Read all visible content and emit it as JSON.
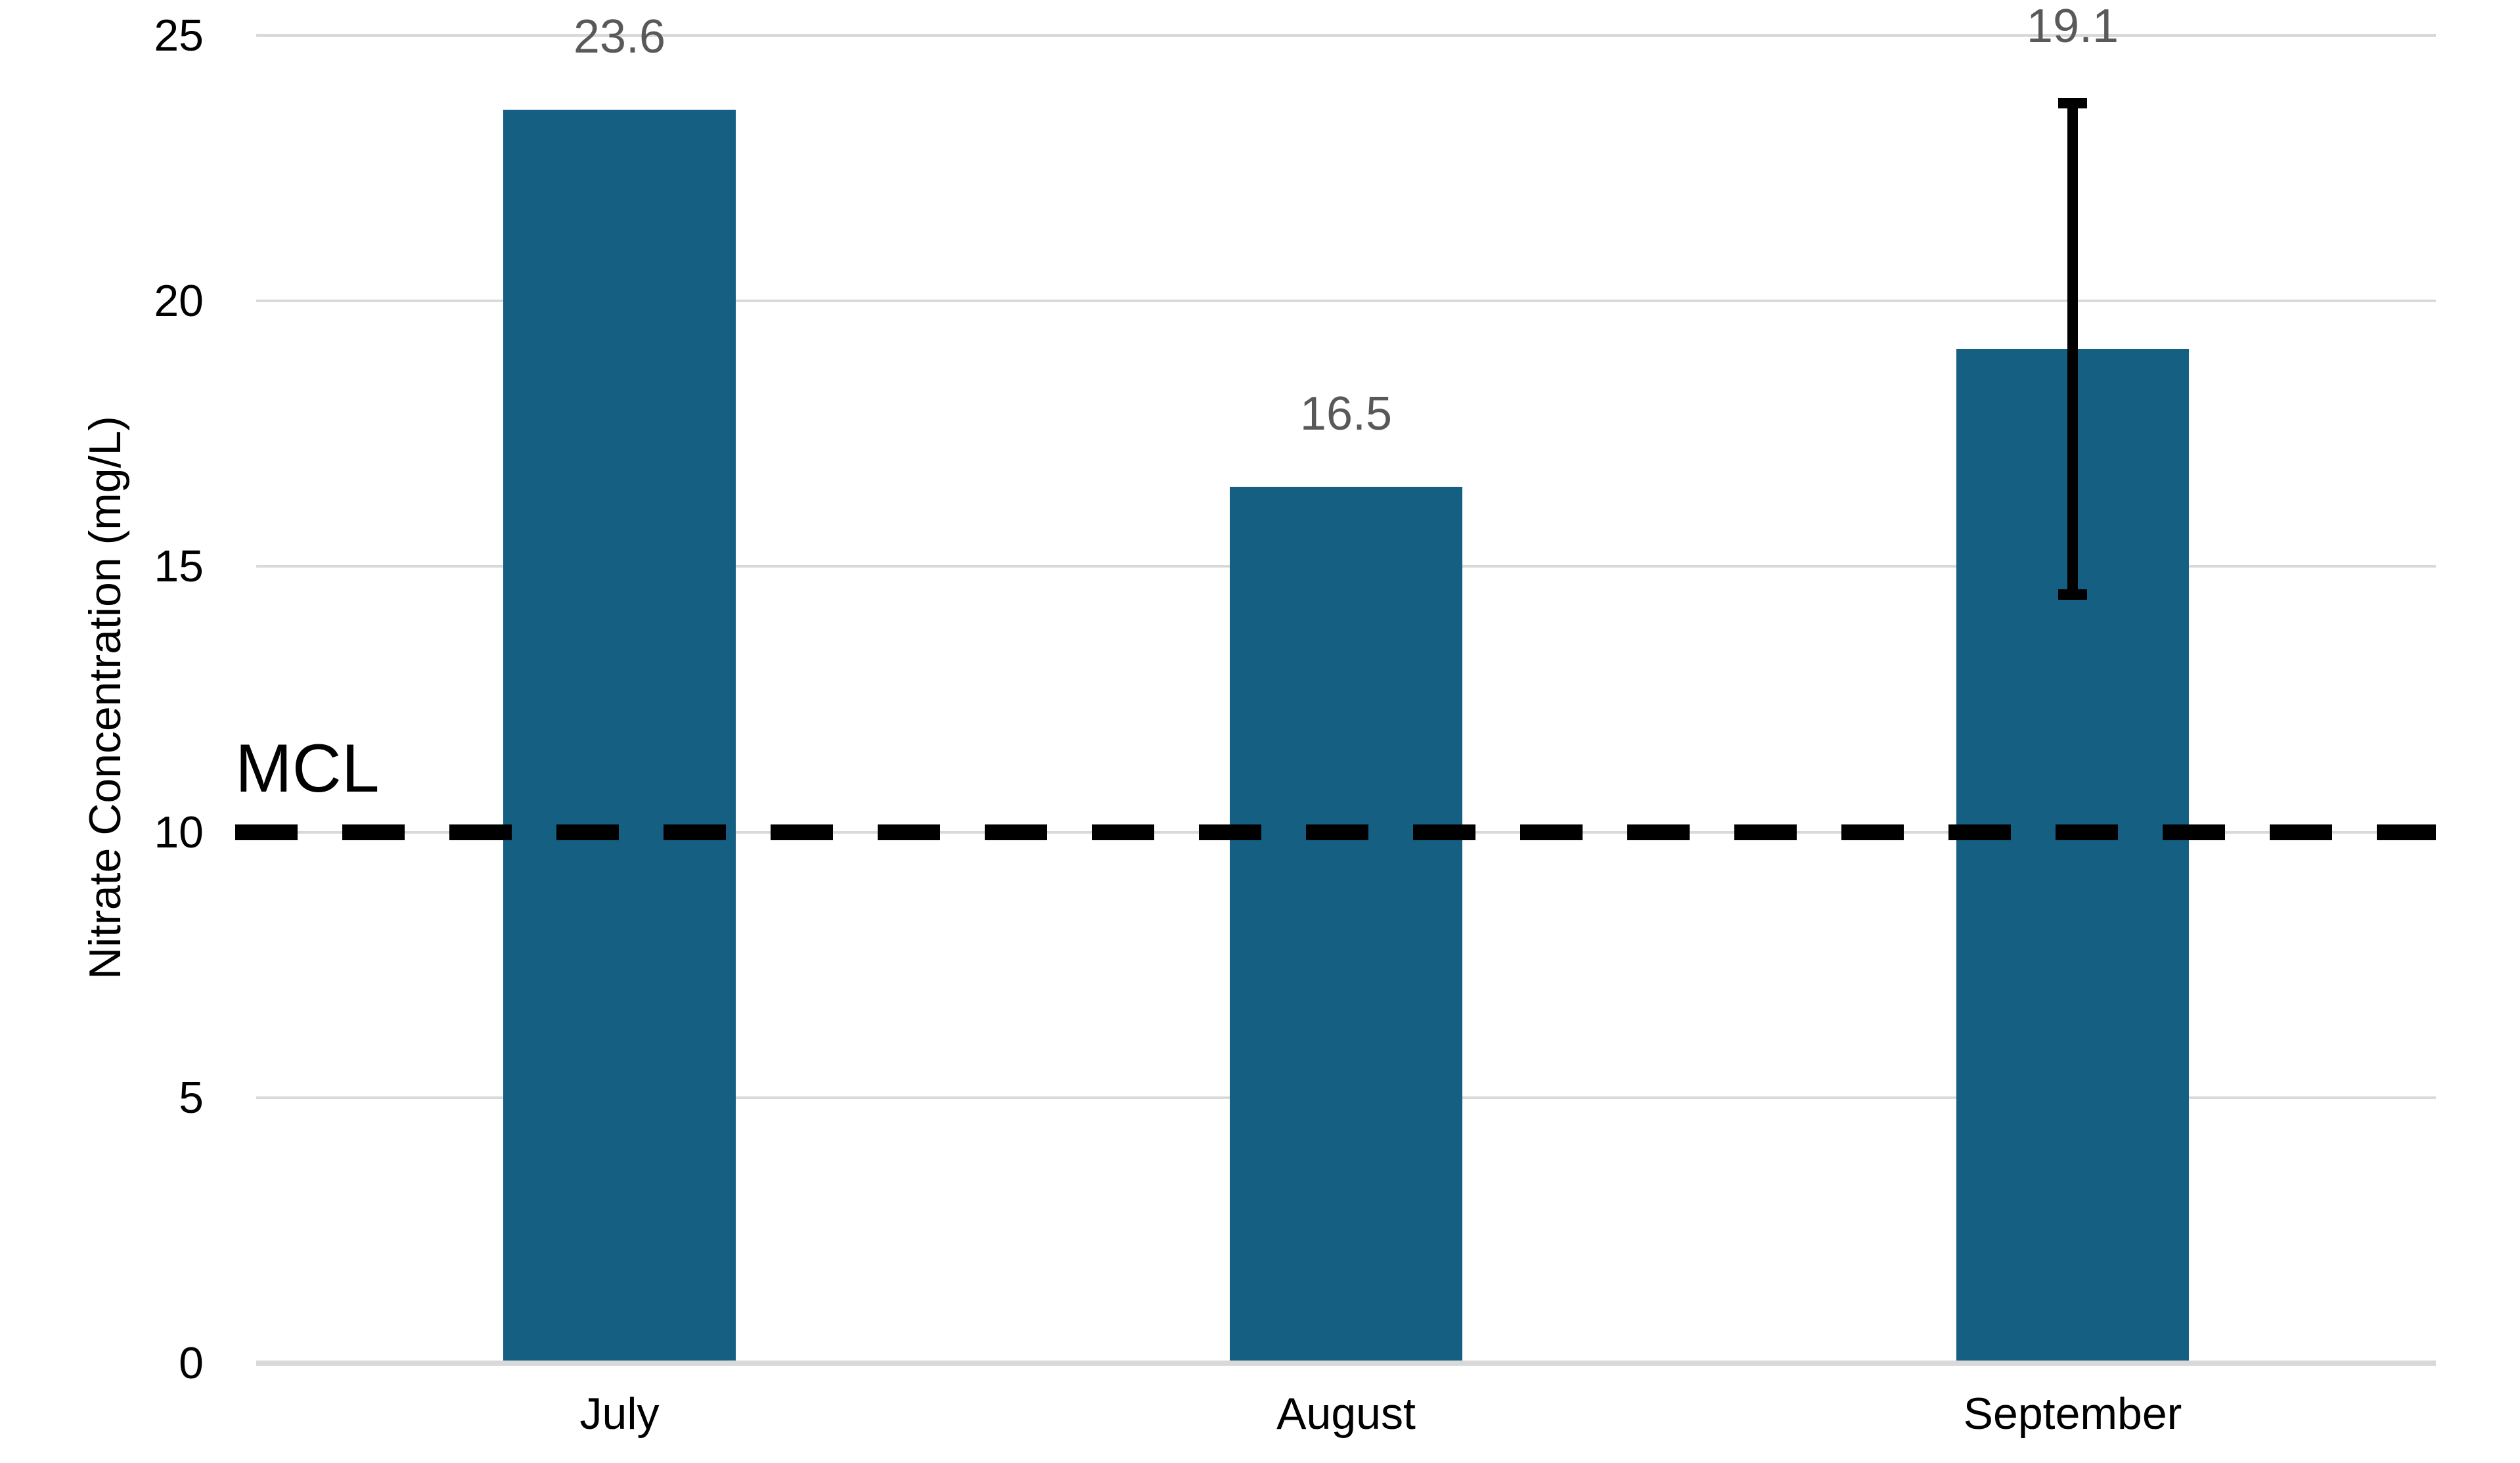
{
  "chart_data": {
    "type": "bar",
    "title": "",
    "categories": [
      "July",
      "August",
      "September"
    ],
    "values": [
      23.6,
      16.5,
      19.1
    ],
    "data_labels": [
      "23.6",
      "16.5",
      "19.1"
    ],
    "error_bars": [
      null,
      null,
      {
        "plus": 4.7,
        "minus": 4.7
      }
    ],
    "ylabel": "Nitrate Concentration (mg/L)",
    "xlabel": "",
    "ylim": [
      0,
      25
    ],
    "yticks": [
      0,
      5,
      10,
      15,
      20,
      25
    ],
    "grid": true,
    "legend": false,
    "reference_line": {
      "label": "MCL",
      "value": 10,
      "style": "dashed"
    },
    "colors": {
      "bar": "#156082",
      "data_label": "#595959",
      "gridline": "#D9D9D9",
      "axis_line": "#D9D9D9",
      "tick_label": "#000000",
      "category_label": "#000000",
      "reference_line": "#000000",
      "error_bar": "#000000",
      "background": "#FFFFFF"
    }
  }
}
